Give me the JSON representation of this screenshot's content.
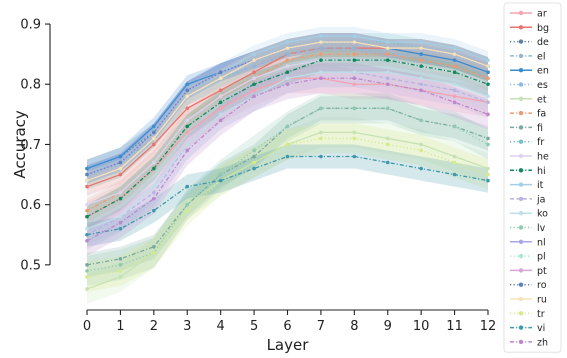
{
  "chart_data": {
    "type": "line",
    "xlabel": "Layer",
    "ylabel": "Accuracy",
    "x": [
      0,
      1,
      2,
      3,
      4,
      5,
      6,
      7,
      8,
      9,
      10,
      11,
      12
    ],
    "xlim": [
      0,
      12
    ],
    "ylim": [
      0.43,
      0.92
    ],
    "yticks": [
      0.5,
      0.6,
      0.7,
      0.8,
      0.9
    ],
    "grid": false,
    "legend_position": "right, outside plot",
    "band": "shaded confidence band around each series",
    "series": [
      {
        "name": "ar",
        "color": "#f4a3ae",
        "dash": "solid",
        "band": 0.025,
        "values": [
          0.58,
          0.61,
          0.66,
          0.72,
          0.76,
          0.79,
          0.81,
          0.81,
          0.8,
          0.8,
          0.79,
          0.78,
          0.77
        ]
      },
      {
        "name": "bg",
        "color": "#e9736d",
        "dash": "solid",
        "band": 0.015,
        "values": [
          0.63,
          0.65,
          0.7,
          0.76,
          0.79,
          0.82,
          0.85,
          0.86,
          0.86,
          0.86,
          0.85,
          0.84,
          0.82
        ]
      },
      {
        "name": "de",
        "color": "#5d7fa3",
        "dash": "dot",
        "band": 0.015,
        "values": [
          0.66,
          0.68,
          0.72,
          0.79,
          0.82,
          0.84,
          0.86,
          0.87,
          0.87,
          0.86,
          0.86,
          0.85,
          0.83
        ]
      },
      {
        "name": "el",
        "color": "#8fb6d6",
        "dash": "dashdot",
        "band": 0.015,
        "values": [
          0.65,
          0.67,
          0.71,
          0.78,
          0.81,
          0.83,
          0.85,
          0.86,
          0.86,
          0.85,
          0.85,
          0.84,
          0.82
        ]
      },
      {
        "name": "en",
        "color": "#3a8ed0",
        "dash": "solid",
        "band": 0.015,
        "values": [
          0.66,
          0.68,
          0.73,
          0.8,
          0.82,
          0.84,
          0.86,
          0.87,
          0.87,
          0.86,
          0.85,
          0.84,
          0.82
        ]
      },
      {
        "name": "es",
        "color": "#8bb6e8",
        "dash": "dot",
        "band": 0.015,
        "values": [
          0.65,
          0.67,
          0.72,
          0.79,
          0.82,
          0.84,
          0.86,
          0.87,
          0.87,
          0.86,
          0.86,
          0.85,
          0.83
        ]
      },
      {
        "name": "et",
        "color": "#c6e2b4",
        "dash": "solid",
        "band": 0.025,
        "values": [
          0.46,
          0.48,
          0.52,
          0.6,
          0.64,
          0.67,
          0.7,
          0.72,
          0.72,
          0.71,
          0.7,
          0.68,
          0.66
        ]
      },
      {
        "name": "fa",
        "color": "#ee9a70",
        "dash": "dashdot",
        "band": 0.02,
        "values": [
          0.59,
          0.62,
          0.67,
          0.74,
          0.78,
          0.81,
          0.84,
          0.85,
          0.85,
          0.85,
          0.84,
          0.83,
          0.81
        ]
      },
      {
        "name": "fi",
        "color": "#7aa8a0",
        "dash": "dashdot",
        "band": 0.02,
        "values": [
          0.5,
          0.51,
          0.53,
          0.6,
          0.65,
          0.68,
          0.73,
          0.76,
          0.76,
          0.76,
          0.74,
          0.73,
          0.71
        ]
      },
      {
        "name": "fr",
        "color": "#72c2c8",
        "dash": "dot",
        "band": 0.015,
        "values": [
          0.64,
          0.66,
          0.71,
          0.78,
          0.81,
          0.84,
          0.86,
          0.87,
          0.87,
          0.87,
          0.86,
          0.85,
          0.83
        ]
      },
      {
        "name": "he",
        "color": "#dcd4f0",
        "dash": "solid",
        "band": 0.02,
        "values": [
          0.6,
          0.62,
          0.67,
          0.74,
          0.78,
          0.81,
          0.83,
          0.84,
          0.84,
          0.84,
          0.83,
          0.82,
          0.8
        ]
      },
      {
        "name": "hi",
        "color": "#0e8a5e",
        "dash": "dashdot",
        "band": 0.02,
        "values": [
          0.58,
          0.61,
          0.66,
          0.73,
          0.77,
          0.8,
          0.82,
          0.84,
          0.84,
          0.84,
          0.83,
          0.82,
          0.8
        ]
      },
      {
        "name": "it",
        "color": "#a2cfe6",
        "dash": "solid",
        "band": 0.015,
        "values": [
          0.65,
          0.67,
          0.72,
          0.79,
          0.82,
          0.85,
          0.87,
          0.88,
          0.88,
          0.87,
          0.87,
          0.86,
          0.84
        ]
      },
      {
        "name": "ja",
        "color": "#b6b4e2",
        "dash": "dash",
        "band": 0.025,
        "values": [
          0.55,
          0.58,
          0.62,
          0.7,
          0.75,
          0.78,
          0.81,
          0.82,
          0.82,
          0.81,
          0.8,
          0.79,
          0.77
        ]
      },
      {
        "name": "ko",
        "color": "#bddfe8",
        "dash": "solid",
        "band": 0.025,
        "values": [
          0.56,
          0.58,
          0.63,
          0.7,
          0.75,
          0.78,
          0.81,
          0.82,
          0.82,
          0.82,
          0.81,
          0.8,
          0.78
        ]
      },
      {
        "name": "lv",
        "color": "#8fcab0",
        "dash": "dot",
        "band": 0.025,
        "values": [
          0.49,
          0.5,
          0.52,
          0.6,
          0.65,
          0.69,
          0.73,
          0.76,
          0.76,
          0.76,
          0.74,
          0.73,
          0.7
        ]
      },
      {
        "name": "nl",
        "color": "#a7a6e6",
        "dash": "solid",
        "band": 0.015,
        "values": [
          0.65,
          0.67,
          0.72,
          0.79,
          0.82,
          0.84,
          0.86,
          0.87,
          0.87,
          0.86,
          0.86,
          0.85,
          0.83
        ]
      },
      {
        "name": "pl",
        "color": "#a6e8d4",
        "dash": "dot",
        "band": 0.015,
        "values": [
          0.64,
          0.66,
          0.71,
          0.78,
          0.81,
          0.84,
          0.86,
          0.87,
          0.87,
          0.86,
          0.86,
          0.85,
          0.83
        ]
      },
      {
        "name": "pt",
        "color": "#d7a7d6",
        "dash": "solid",
        "band": 0.015,
        "values": [
          0.64,
          0.66,
          0.71,
          0.78,
          0.81,
          0.84,
          0.86,
          0.87,
          0.87,
          0.86,
          0.86,
          0.85,
          0.83
        ]
      },
      {
        "name": "ro",
        "color": "#5a80bf",
        "dash": "dot",
        "band": 0.015,
        "values": [
          0.65,
          0.67,
          0.72,
          0.79,
          0.82,
          0.84,
          0.86,
          0.87,
          0.87,
          0.86,
          0.86,
          0.85,
          0.83
        ]
      },
      {
        "name": "ru",
        "color": "#f6e3b8",
        "dash": "solid",
        "band": 0.015,
        "values": [
          0.64,
          0.66,
          0.71,
          0.78,
          0.81,
          0.84,
          0.86,
          0.87,
          0.87,
          0.86,
          0.86,
          0.85,
          0.83
        ]
      },
      {
        "name": "tr",
        "color": "#d7e98a",
        "dash": "dot",
        "band": 0.025,
        "values": [
          0.48,
          0.49,
          0.52,
          0.59,
          0.64,
          0.67,
          0.7,
          0.71,
          0.71,
          0.7,
          0.69,
          0.67,
          0.65
        ]
      },
      {
        "name": "vi",
        "color": "#3f98aa",
        "dash": "dashdot",
        "band": 0.02,
        "values": [
          0.55,
          0.56,
          0.59,
          0.63,
          0.64,
          0.66,
          0.68,
          0.68,
          0.68,
          0.67,
          0.66,
          0.65,
          0.64
        ]
      },
      {
        "name": "zh",
        "color": "#bd87cf",
        "dash": "dashdot",
        "band": 0.025,
        "values": [
          0.54,
          0.57,
          0.61,
          0.69,
          0.74,
          0.78,
          0.8,
          0.81,
          0.81,
          0.8,
          0.79,
          0.77,
          0.75
        ]
      }
    ]
  }
}
